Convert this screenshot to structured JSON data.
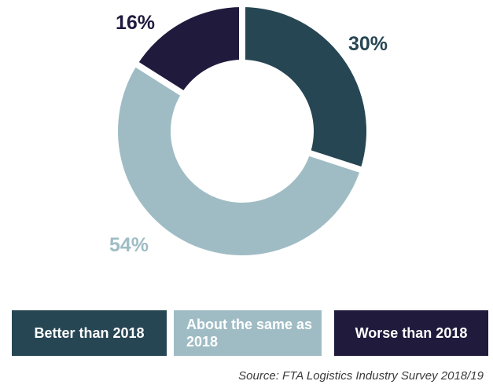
{
  "chart_data": {
    "type": "pie",
    "title": "",
    "slices": [
      {
        "name": "Better than 2018",
        "value": 30,
        "label": "30%",
        "color": "#264653"
      },
      {
        "name": "About the same as 2018",
        "value": 54,
        "label": "54%",
        "color": "#9fbcc4"
      },
      {
        "name": "Worse than 2018",
        "value": 16,
        "label": "16%",
        "color": "#201a3d"
      }
    ],
    "donut": true,
    "legend_placement": "bottom"
  },
  "legend": {
    "better": "Better than 2018",
    "same": "About the same as 2018",
    "worse": "Worse than 2018"
  },
  "source": "Source: FTA Logistics Industry Survey 2018/19"
}
